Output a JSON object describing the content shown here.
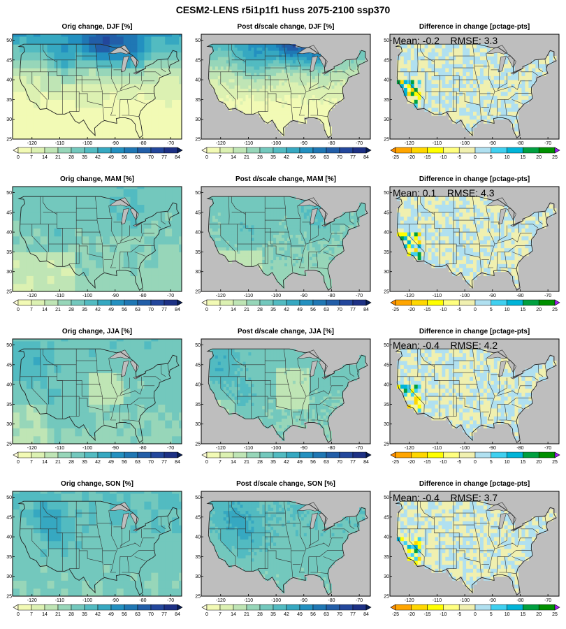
{
  "title": "CESM2-LENS r5i1p1f1 huss 2075-2100 ssp370",
  "lon_ticks": [
    "-120",
    "-110",
    "-100",
    "-90",
    "-80",
    "-70"
  ],
  "lat_ticks": [
    "25",
    "30",
    "35",
    "40",
    "45",
    "50"
  ],
  "change_scale": {
    "labels": [
      "0",
      "7",
      "14",
      "21",
      "28",
      "35",
      "42",
      "49",
      "56",
      "63",
      "70",
      "77",
      "84"
    ],
    "colors": [
      "#ffffd9",
      "#f2fab5",
      "#dcf1b2",
      "#bfe5b5",
      "#97d6b9",
      "#73c8bd",
      "#52bbc1",
      "#36a8c1",
      "#2390c0",
      "#1f77b4",
      "#225ea8",
      "#23479c",
      "#1d3185",
      "#081d58"
    ]
  },
  "diff_scale": {
    "labels": [
      "-25",
      "-20",
      "-15",
      "-10",
      "-5",
      "0",
      "5",
      "10",
      "15",
      "20",
      "25"
    ],
    "colors": [
      "#ff8c00",
      "#ffa500",
      "#ffd700",
      "#ffff00",
      "#ffff80",
      "#f0f0b0",
      "#b0e0f0",
      "#40d0f0",
      "#00b4d8",
      "#00a040",
      "#009000",
      "#a020f0"
    ]
  },
  "rows": [
    {
      "season": "DJF",
      "orig_title": "Orig change, DJF [%]",
      "post_title": "Post d/scale change, DJF [%]",
      "diff_title": "Difference in change [pctage-pts]",
      "stats": "Mean: -0.2    RMSE: 3.3"
    },
    {
      "season": "MAM",
      "orig_title": "Orig change, MAM [%]",
      "post_title": "Post d/scale change, MAM [%]",
      "diff_title": "Difference in change [pctage-pts]",
      "stats": "Mean: 0.1    RMSE: 4.3"
    },
    {
      "season": "JJA",
      "orig_title": "Orig change, JJA [%]",
      "post_title": "Post d/scale change, JJA [%]",
      "diff_title": "Difference in change [pctage-pts]",
      "stats": "Mean: -0.4    RMSE: 4.2"
    },
    {
      "season": "SON",
      "orig_title": "Orig change, SON [%]",
      "post_title": "Post d/scale change, SON [%]",
      "diff_title": "Difference in change [pctage-pts]",
      "stats": "Mean: -0.4    RMSE: 3.7"
    }
  ],
  "colors": {
    "ocean_gray": "#bebebe",
    "border": "#333333"
  }
}
